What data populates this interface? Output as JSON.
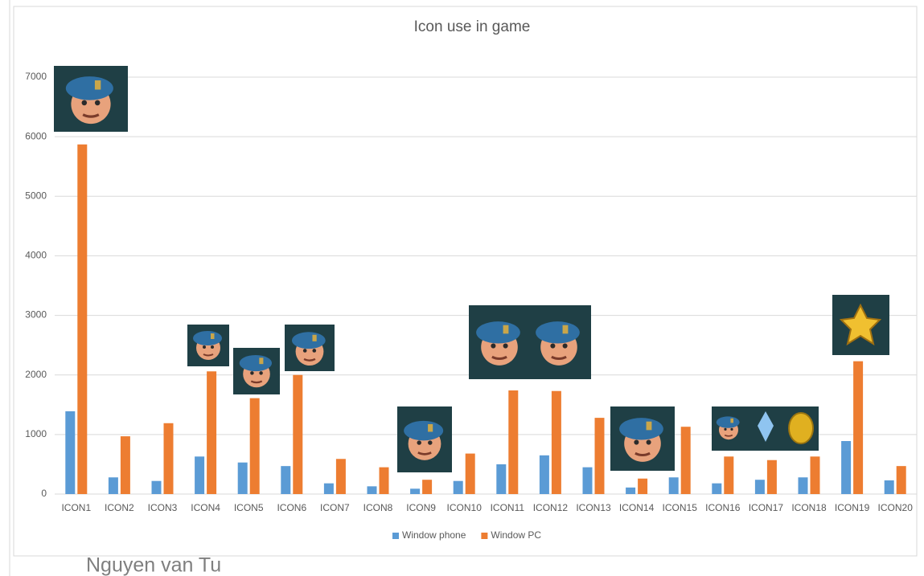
{
  "chart_data": {
    "type": "bar",
    "title": "Icon use in game",
    "categories": [
      "ICON1",
      "ICON2",
      "ICON3",
      "ICON4",
      "ICON5",
      "ICON6",
      "ICON7",
      "ICON8",
      "ICON9",
      "ICON10",
      "ICON11",
      "ICON12",
      "ICON13",
      "ICON14",
      "ICON15",
      "ICON16",
      "ICON17",
      "ICON18",
      "ICON19",
      "ICON20"
    ],
    "series": [
      {
        "name": "Window phone",
        "color": "#5b9bd5",
        "values": [
          1390,
          280,
          220,
          630,
          530,
          470,
          180,
          130,
          90,
          220,
          500,
          650,
          450,
          110,
          280,
          180,
          240,
          280,
          890,
          230
        ]
      },
      {
        "name": "Window PC",
        "color": "#ed7d31",
        "values": [
          5870,
          970,
          1190,
          2060,
          1610,
          2000,
          590,
          450,
          240,
          680,
          1740,
          1730,
          1280,
          260,
          1130,
          630,
          570,
          630,
          2230,
          470
        ]
      }
    ],
    "ylim": [
      0,
      7000
    ],
    "yticks": [
      0,
      1000,
      2000,
      3000,
      4000,
      5000,
      6000,
      7000
    ],
    "grid": true,
    "legend": "bottom"
  },
  "footer": "Nguyen van Tu"
}
